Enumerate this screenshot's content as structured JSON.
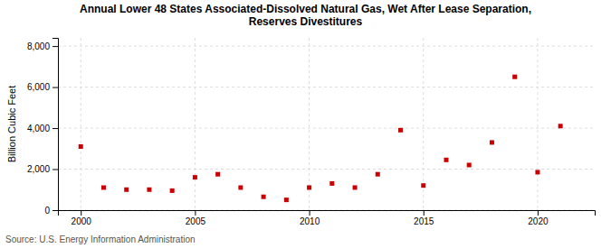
{
  "chart_data": {
    "type": "scatter",
    "title": "Annual Lower 48 States Associated-Dissolved Natural Gas, Wet After Lease Separation,\nReserves Divestitures",
    "ylabel": "Billion Cubic Feet",
    "annotations": [
      "Source: U.S. Energy Information Administration"
    ],
    "x": [
      2000,
      2001,
      2002,
      2003,
      2004,
      2005,
      2006,
      2007,
      2008,
      2009,
      2010,
      2011,
      2012,
      2013,
      2014,
      2015,
      2016,
      2017,
      2018,
      2019,
      2020,
      2021
    ],
    "values": [
      3100,
      1100,
      1000,
      1000,
      950,
      1600,
      1750,
      1100,
      650,
      500,
      1100,
      1300,
      1100,
      1750,
      3900,
      1200,
      2450,
      2200,
      3300,
      6500,
      1850,
      4100
    ],
    "color": "#cc0000",
    "marker": "square",
    "xlim": [
      1999.0,
      2022.5
    ],
    "ylim": [
      0,
      8400
    ],
    "xticks": [
      2000,
      2005,
      2010,
      2015,
      2020
    ],
    "yticks": [
      0,
      {
        "value": 2000,
        "label": "2,000"
      },
      {
        "value": 4000,
        "label": "4,000"
      },
      {
        "value": 6000,
        "label": "6,000"
      },
      {
        "value": 8000,
        "label": "8,000"
      }
    ],
    "grid": true
  }
}
